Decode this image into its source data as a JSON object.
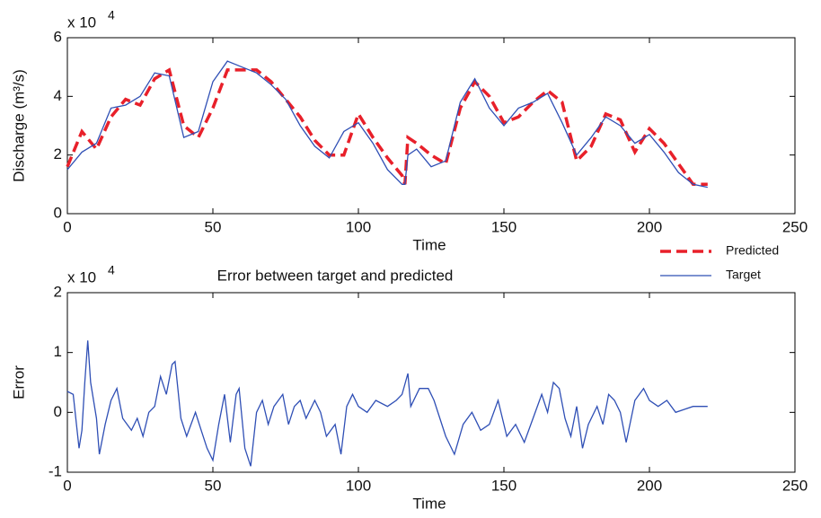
{
  "chart_data": [
    {
      "type": "line",
      "xlabel": "Time",
      "ylabel": "Discharge (m³/s)",
      "y_multiplier": "x 10",
      "y_multiplier_exponent": "4",
      "xlim": [
        0,
        250
      ],
      "xticks": [
        0,
        50,
        100,
        150,
        200,
        250
      ],
      "ylim": [
        0,
        6
      ],
      "yticks": [
        0,
        2,
        4,
        6
      ],
      "x": [
        0,
        5,
        10,
        15,
        20,
        25,
        30,
        35,
        40,
        45,
        50,
        55,
        60,
        65,
        70,
        75,
        80,
        85,
        90,
        95,
        100,
        105,
        110,
        115,
        116,
        117,
        120,
        125,
        130,
        135,
        140,
        145,
        150,
        155,
        160,
        165,
        170,
        175,
        180,
        185,
        190,
        195,
        200,
        205,
        210,
        215,
        220
      ],
      "series": [
        {
          "name": "Predicted",
          "color": "#e8202a",
          "line_style": "dashed",
          "values": [
            1.6,
            2.8,
            2.2,
            3.3,
            3.9,
            3.7,
            4.6,
            4.9,
            3.0,
            2.6,
            3.6,
            4.9,
            4.9,
            4.9,
            4.5,
            3.9,
            3.3,
            2.5,
            2.0,
            2.0,
            3.4,
            2.6,
            1.9,
            1.3,
            1.0,
            2.6,
            2.4,
            2.0,
            1.7,
            3.6,
            4.5,
            4.0,
            3.1,
            3.3,
            3.8,
            4.2,
            3.8,
            1.8,
            2.3,
            3.4,
            3.2,
            2.1,
            2.9,
            2.4,
            1.7,
            1.0,
            1.0
          ]
        },
        {
          "name": "Target",
          "color": "#2f4fb5",
          "line_style": "solid",
          "values": [
            1.5,
            2.1,
            2.4,
            3.6,
            3.7,
            4.0,
            4.8,
            4.7,
            2.6,
            2.8,
            4.5,
            5.2,
            5.0,
            4.8,
            4.4,
            3.9,
            3.0,
            2.3,
            1.9,
            2.8,
            3.1,
            2.4,
            1.5,
            1.0,
            1.0,
            2.0,
            2.2,
            1.6,
            1.8,
            3.8,
            4.6,
            3.6,
            3.0,
            3.6,
            3.8,
            4.1,
            3.1,
            2.0,
            2.6,
            3.3,
            3.0,
            2.4,
            2.7,
            2.1,
            1.4,
            1.0,
            0.9
          ]
        }
      ]
    },
    {
      "type": "line",
      "title": "Error between target and predicted",
      "xlabel": "Time",
      "ylabel": "Error",
      "y_multiplier": "x 10",
      "y_multiplier_exponent": "4",
      "xlim": [
        0,
        250
      ],
      "xticks": [
        0,
        50,
        100,
        150,
        200,
        250
      ],
      "ylim": [
        -1,
        2
      ],
      "yticks": [
        -1,
        0,
        1,
        2
      ],
      "x": [
        0,
        2,
        4,
        5,
        6,
        7,
        8,
        10,
        11,
        13,
        15,
        17,
        19,
        22,
        24,
        26,
        28,
        30,
        32,
        34,
        36,
        37,
        39,
        41,
        44,
        46,
        48,
        50,
        52,
        54,
        56,
        58,
        59,
        61,
        63,
        65,
        67,
        69,
        71,
        74,
        76,
        78,
        80,
        82,
        85,
        87,
        89,
        92,
        94,
        96,
        98,
        100,
        103,
        106,
        110,
        113,
        115,
        117,
        118,
        121,
        124,
        126,
        130,
        133,
        136,
        139,
        142,
        145,
        148,
        151,
        154,
        157,
        160,
        163,
        165,
        167,
        169,
        171,
        173,
        175,
        177,
        179,
        182,
        184,
        186,
        188,
        190,
        192,
        195,
        198,
        200,
        203,
        206,
        209,
        212,
        215,
        218,
        220
      ],
      "series": [
        {
          "name": "Error",
          "color": "#2f4fb5",
          "values": [
            0.35,
            0.3,
            -0.6,
            -0.3,
            0.5,
            1.2,
            0.5,
            -0.1,
            -0.7,
            -0.2,
            0.2,
            0.4,
            -0.1,
            -0.3,
            -0.1,
            -0.4,
            0,
            0.1,
            0.6,
            0.3,
            0.8,
            0.85,
            -0.1,
            -0.4,
            0,
            -0.3,
            -0.6,
            -0.8,
            -0.2,
            0.3,
            -0.5,
            0.3,
            0.4,
            -0.6,
            -0.9,
            0,
            0.2,
            -0.2,
            0.1,
            0.3,
            -0.2,
            0.1,
            0.2,
            -0.1,
            0.2,
            0,
            -0.4,
            -0.2,
            -0.7,
            0.1,
            0.3,
            0.1,
            0,
            0.2,
            0.1,
            0.2,
            0.3,
            0.65,
            0.1,
            0.4,
            0.4,
            0.2,
            -0.4,
            -0.7,
            -0.2,
            0,
            -0.3,
            -0.2,
            0.2,
            -0.4,
            -0.2,
            -0.5,
            -0.1,
            0.3,
            0,
            0.5,
            0.4,
            -0.1,
            -0.4,
            0.1,
            -0.6,
            -0.2,
            0.1,
            -0.2,
            0.3,
            0.2,
            0,
            -0.5,
            0.2,
            0.4,
            0.2,
            0.1,
            0.2,
            0,
            0.05,
            0.1,
            0.1,
            0.1
          ]
        }
      ]
    }
  ]
}
